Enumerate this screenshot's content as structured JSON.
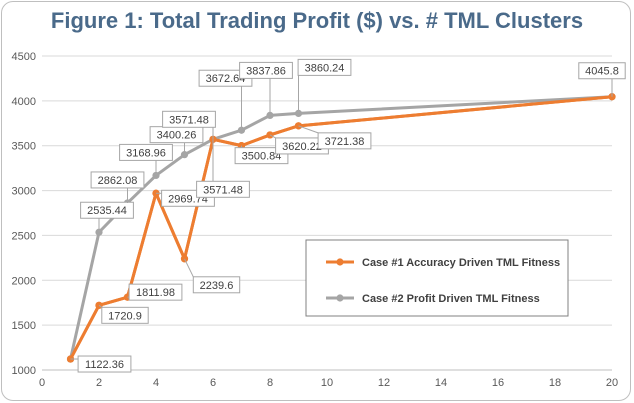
{
  "chart_data": {
    "type": "line",
    "title": "Figure 1: Total Trading Profit ($) vs. # TML Clusters",
    "xlabel": "",
    "ylabel": "",
    "xlim": [
      0,
      20
    ],
    "ylim": [
      1000,
      4500
    ],
    "x_ticks": [
      0,
      2,
      4,
      6,
      8,
      10,
      12,
      14,
      16,
      18,
      20
    ],
    "y_ticks": [
      1000,
      1500,
      2000,
      2500,
      3000,
      3500,
      4000,
      4500
    ],
    "grid": "horizontal",
    "legend_position": "center-right",
    "series": [
      {
        "name": "Case #1 Accuracy Driven TML Fitness",
        "color": "#ed7d31",
        "x": [
          1,
          2,
          3,
          4,
          5,
          6,
          7,
          8,
          9,
          20
        ],
        "y": [
          1122.36,
          1720.9,
          1811.98,
          2969.74,
          2239.6,
          3571.48,
          3500.84,
          3620.22,
          3721.38,
          4045.8
        ]
      },
      {
        "name": "Case #2 Profit Driven TML Fitness",
        "color": "#a5a5a5",
        "x": [
          1,
          2,
          3,
          4,
          5,
          6,
          7,
          8,
          9,
          20
        ],
        "y": [
          1122.36,
          2535.44,
          2862.08,
          3168.96,
          3400.26,
          3571.48,
          3672.64,
          3837.86,
          3860.24,
          4045.8
        ]
      }
    ],
    "data_labels": [
      {
        "text": "1122.36",
        "x": 1,
        "y": 1122.36
      },
      {
        "text": "1720.9",
        "x": 2,
        "y": 1720.9
      },
      {
        "text": "1811.98",
        "x": 3,
        "y": 1811.98
      },
      {
        "text": "2969.74",
        "x": 4,
        "y": 2969.74
      },
      {
        "text": "2239.6",
        "x": 5,
        "y": 2239.6
      },
      {
        "text": "3571.48",
        "x": 6,
        "y": 3571.48
      },
      {
        "text": "3500.84",
        "x": 7,
        "y": 3500.84
      },
      {
        "text": "3620.22",
        "x": 8,
        "y": 3620.22
      },
      {
        "text": "3721.38",
        "x": 9,
        "y": 3721.38
      },
      {
        "text": "2535.44",
        "x": 2,
        "y": 2535.44
      },
      {
        "text": "2862.08",
        "x": 3,
        "y": 2862.08
      },
      {
        "text": "3168.96",
        "x": 4,
        "y": 3168.96
      },
      {
        "text": "3400.26",
        "x": 5,
        "y": 3400.26
      },
      {
        "text": "3571.48",
        "x": 6,
        "y": 3571.48
      },
      {
        "text": "3672.64",
        "x": 7,
        "y": 3672.64
      },
      {
        "text": "3837.86",
        "x": 8,
        "y": 3837.86
      },
      {
        "text": "3860.24",
        "x": 9,
        "y": 3860.24
      },
      {
        "text": "4045.8",
        "x": 20,
        "y": 4045.8
      }
    ]
  }
}
